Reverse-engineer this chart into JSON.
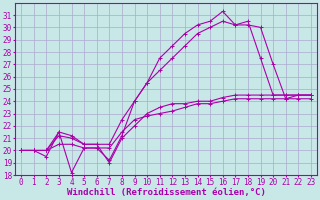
{
  "xlabel": "Windchill (Refroidissement éolien,°C)",
  "bg_color": "#c8e8e8",
  "grid_color": "#aaaacc",
  "line_color": "#aa00aa",
  "xlim": [
    -0.5,
    23.5
  ],
  "ylim": [
    18,
    32
  ],
  "xticks": [
    0,
    1,
    2,
    3,
    4,
    5,
    6,
    7,
    8,
    9,
    10,
    11,
    12,
    13,
    14,
    15,
    16,
    17,
    18,
    19,
    20,
    21,
    22,
    23
  ],
  "yticks": [
    18,
    19,
    20,
    21,
    22,
    23,
    24,
    25,
    26,
    27,
    28,
    29,
    30,
    31
  ],
  "series": [
    [
      20.0,
      20.0,
      19.5,
      21.5,
      18.2,
      20.2,
      20.2,
      19.2,
      21.2,
      24.0,
      25.5,
      27.5,
      28.5,
      29.5,
      30.2,
      30.5,
      31.3,
      30.2,
      30.5,
      27.5,
      24.5,
      24.5,
      24.5,
      24.5
    ],
    [
      20.0,
      20.0,
      20.0,
      21.5,
      21.2,
      20.5,
      20.5,
      20.5,
      22.5,
      24.0,
      25.5,
      26.5,
      27.5,
      28.5,
      29.5,
      30.0,
      30.5,
      30.2,
      30.2,
      30.0,
      27.0,
      24.2,
      24.5,
      24.5
    ],
    [
      20.0,
      20.0,
      20.0,
      21.2,
      21.0,
      20.5,
      20.5,
      19.0,
      21.0,
      22.0,
      23.0,
      23.5,
      23.8,
      23.8,
      24.0,
      24.0,
      24.3,
      24.5,
      24.5,
      24.5,
      24.5,
      24.5,
      24.5,
      24.5
    ],
    [
      20.0,
      20.0,
      20.0,
      20.5,
      20.5,
      20.2,
      20.2,
      20.2,
      21.5,
      22.5,
      22.8,
      23.0,
      23.2,
      23.5,
      23.8,
      23.8,
      24.0,
      24.2,
      24.2,
      24.2,
      24.2,
      24.2,
      24.2,
      24.2
    ]
  ],
  "font_family": "monospace",
  "tick_fontsize": 5.5,
  "xlabel_fontsize": 6.5,
  "marker": "+",
  "marker_size": 3,
  "linewidth": 0.8
}
